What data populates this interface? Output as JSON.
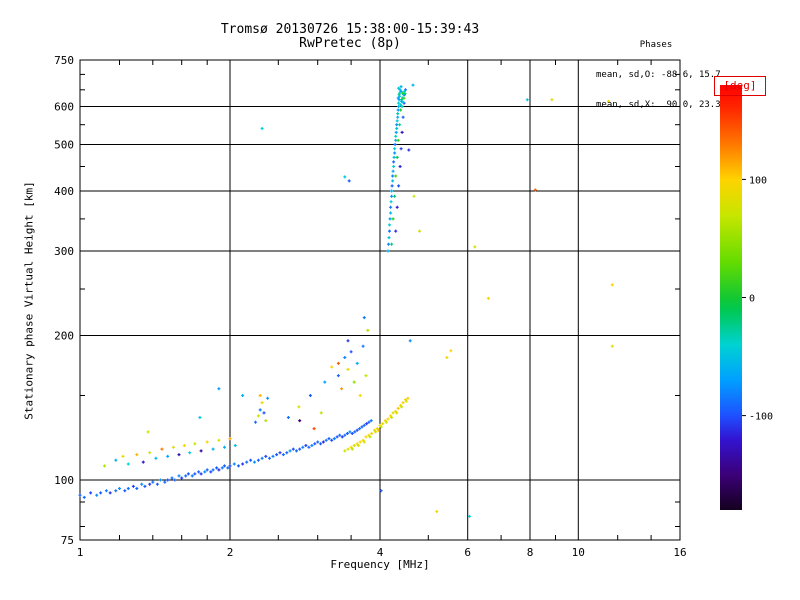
{
  "header": {
    "title": "Tromsø 20130726 15:38:00-15:39:43",
    "subtitle": "RwPretec (8p)",
    "stats": {
      "header": "Phases",
      "line_o": "mean, sd,O: -88.6, 15.7",
      "line_x": "mean, sd,X:  90.0, 23.3"
    }
  },
  "colorbar": {
    "label": "[deg]",
    "label_color": "#e00000",
    "min": -180,
    "max": 180,
    "ticks": [
      100,
      0,
      -100
    ],
    "stops": [
      [
        -180,
        "#14001e"
      ],
      [
        -150,
        "#3c0078"
      ],
      [
        -120,
        "#3214d2"
      ],
      [
        -100,
        "#1e50ff"
      ],
      [
        -70,
        "#00a0ff"
      ],
      [
        -40,
        "#00d2d2"
      ],
      [
        -10,
        "#00c850"
      ],
      [
        0,
        "#14c832"
      ],
      [
        30,
        "#64dc00"
      ],
      [
        70,
        "#c8e600"
      ],
      [
        100,
        "#ffd200"
      ],
      [
        130,
        "#ff7800"
      ],
      [
        160,
        "#ff2800"
      ],
      [
        180,
        "#ff0000"
      ]
    ]
  },
  "chart_data": {
    "type": "scatter",
    "title": "Tromsø 20130726 15:38:00-15:39:43",
    "subtitle": "RwPretec (8p)",
    "xlabel": "Frequency [MHz]",
    "ylabel": "Stationary phase Virtual Height [km]",
    "xscale": "log",
    "yscale": "log",
    "xlim": [
      1,
      16
    ],
    "ylim": [
      75,
      750
    ],
    "xticks": [
      1,
      2,
      4,
      6,
      8,
      10,
      16
    ],
    "yticks": [
      75,
      100,
      200,
      300,
      400,
      500,
      600,
      750
    ],
    "xticks_minor": [
      1.2,
      1.4,
      1.6,
      1.8,
      2.5,
      3,
      3.5,
      5,
      7,
      9,
      12,
      14
    ],
    "yticks_minor": [
      80,
      90,
      150,
      250,
      350,
      450,
      550,
      650,
      700
    ],
    "grid_x": [
      2,
      4,
      6,
      8,
      10
    ],
    "grid_y": [
      100,
      200,
      300,
      400,
      500,
      600
    ],
    "color_value": "phase_deg",
    "points": [
      [
        1.0,
        93,
        -95
      ],
      [
        1.02,
        92,
        -88
      ],
      [
        1.05,
        94,
        -102
      ],
      [
        1.08,
        93,
        -80
      ],
      [
        1.1,
        94,
        -96
      ],
      [
        1.13,
        95,
        -85
      ],
      [
        1.15,
        94,
        -108
      ],
      [
        1.18,
        95,
        -90
      ],
      [
        1.2,
        96,
        -75
      ],
      [
        1.23,
        95,
        -98
      ],
      [
        1.25,
        96,
        -86
      ],
      [
        1.28,
        97,
        -104
      ],
      [
        1.3,
        96,
        -92
      ],
      [
        1.33,
        98,
        -79
      ],
      [
        1.35,
        97,
        -95
      ],
      [
        1.38,
        98,
        -110
      ],
      [
        1.4,
        99,
        -84
      ],
      [
        1.43,
        98,
        -97
      ],
      [
        1.45,
        100,
        -72
      ],
      [
        1.48,
        99,
        -90
      ],
      [
        1.5,
        100,
        -101
      ],
      [
        1.53,
        101,
        -87
      ],
      [
        1.55,
        100,
        -94
      ],
      [
        1.58,
        102,
        -78
      ],
      [
        1.6,
        101,
        -105
      ],
      [
        1.63,
        102,
        -89
      ],
      [
        1.65,
        103,
        -96
      ],
      [
        1.68,
        102,
        -82
      ],
      [
        1.7,
        103,
        -99
      ],
      [
        1.73,
        104,
        -91
      ],
      [
        1.75,
        103,
        -107
      ],
      [
        1.78,
        104,
        -76
      ],
      [
        1.8,
        105,
        -93
      ],
      [
        1.83,
        104,
        -100
      ],
      [
        1.85,
        105,
        -86
      ],
      [
        1.88,
        106,
        -97
      ],
      [
        1.9,
        105,
        -111
      ],
      [
        1.93,
        106,
        -83
      ],
      [
        1.95,
        107,
        -95
      ],
      [
        1.98,
        106,
        -90
      ],
      [
        2.0,
        107,
        -102
      ],
      [
        2.04,
        108,
        -77
      ],
      [
        2.08,
        107,
        -94
      ],
      [
        2.12,
        108,
        -106
      ],
      [
        2.16,
        109,
        -88
      ],
      [
        2.2,
        110,
        -99
      ],
      [
        2.24,
        109,
        -73
      ],
      [
        2.28,
        110,
        -96
      ],
      [
        2.32,
        111,
        -85
      ],
      [
        2.36,
        112,
        -103
      ],
      [
        2.4,
        111,
        -92
      ],
      [
        2.44,
        112,
        -80
      ],
      [
        2.48,
        113,
        -98
      ],
      [
        2.52,
        114,
        -109
      ],
      [
        2.56,
        113,
        -87
      ],
      [
        2.6,
        114,
        -95
      ],
      [
        2.64,
        115,
        -74
      ],
      [
        2.68,
        116,
        -101
      ],
      [
        2.72,
        115,
        -90
      ],
      [
        2.76,
        116,
        -97
      ],
      [
        2.8,
        117,
        -84
      ],
      [
        2.84,
        118,
        -105
      ],
      [
        2.88,
        117,
        -93
      ],
      [
        2.92,
        118,
        -79
      ],
      [
        2.96,
        119,
        -100
      ],
      [
        3.0,
        120,
        -89
      ],
      [
        3.04,
        119,
        -96
      ],
      [
        3.08,
        120,
        -112
      ],
      [
        3.12,
        121,
        -86
      ],
      [
        3.16,
        122,
        -94
      ],
      [
        3.2,
        121,
        -103
      ],
      [
        3.24,
        122,
        -81
      ],
      [
        3.28,
        123,
        -98
      ],
      [
        3.32,
        124,
        -91
      ],
      [
        3.36,
        123,
        -107
      ],
      [
        3.4,
        124,
        -88
      ],
      [
        3.44,
        125,
        -95
      ],
      [
        3.48,
        126,
        -76
      ],
      [
        3.52,
        125,
        -100
      ],
      [
        3.56,
        126,
        -92
      ],
      [
        3.6,
        127,
        -104
      ],
      [
        3.64,
        128,
        -85
      ],
      [
        3.68,
        129,
        -97
      ],
      [
        3.72,
        130,
        -90
      ],
      [
        3.76,
        131,
        -108
      ],
      [
        3.8,
        132,
        -94
      ],
      [
        3.84,
        133,
        -82
      ],
      [
        1.12,
        107,
        60
      ],
      [
        1.18,
        110,
        -60
      ],
      [
        1.22,
        112,
        90
      ],
      [
        1.25,
        108,
        -40
      ],
      [
        1.3,
        113,
        110
      ],
      [
        1.34,
        109,
        -120
      ],
      [
        1.38,
        114,
        75
      ],
      [
        1.42,
        111,
        -55
      ],
      [
        1.46,
        116,
        130
      ],
      [
        1.5,
        112,
        -65
      ],
      [
        1.54,
        117,
        85
      ],
      [
        1.58,
        113,
        -130
      ],
      [
        1.62,
        118,
        95
      ],
      [
        1.66,
        114,
        -45
      ],
      [
        1.7,
        119,
        70
      ],
      [
        1.75,
        115,
        -140
      ],
      [
        1.8,
        120,
        100
      ],
      [
        1.85,
        116,
        -58
      ],
      [
        1.9,
        121,
        80
      ],
      [
        1.95,
        117,
        -62
      ],
      [
        2.0,
        122,
        115
      ],
      [
        2.05,
        118,
        -48
      ],
      [
        2.25,
        132,
        -90
      ],
      [
        2.28,
        136,
        70
      ],
      [
        2.3,
        140,
        -85
      ],
      [
        2.32,
        145,
        95
      ],
      [
        2.34,
        138,
        -100
      ],
      [
        2.36,
        133,
        60
      ],
      [
        2.38,
        148,
        -75
      ],
      [
        2.3,
        150,
        110
      ],
      [
        2.62,
        135,
        -88
      ],
      [
        2.75,
        142,
        80
      ],
      [
        2.9,
        150,
        -95
      ],
      [
        3.05,
        138,
        65
      ],
      [
        3.1,
        160,
        -70
      ],
      [
        3.2,
        172,
        100
      ],
      [
        3.3,
        165,
        -90
      ],
      [
        3.35,
        155,
        120
      ],
      [
        3.4,
        180,
        -80
      ],
      [
        3.45,
        170,
        85
      ],
      [
        3.5,
        185,
        -100
      ],
      [
        3.55,
        160,
        45
      ],
      [
        3.6,
        175,
        -60
      ],
      [
        3.65,
        150,
        95
      ],
      [
        3.7,
        190,
        -85
      ],
      [
        3.75,
        165,
        70
      ],
      [
        3.3,
        175,
        140
      ],
      [
        3.45,
        195,
        -110
      ],
      [
        3.4,
        115,
        75
      ],
      [
        3.45,
        116,
        85
      ],
      [
        3.5,
        117,
        95
      ],
      [
        3.55,
        118,
        80
      ],
      [
        3.6,
        119,
        90
      ],
      [
        3.65,
        120,
        100
      ],
      [
        3.7,
        121,
        85
      ],
      [
        3.75,
        123,
        95
      ],
      [
        3.8,
        124,
        88
      ],
      [
        3.85,
        125,
        98
      ],
      [
        3.9,
        127,
        82
      ],
      [
        3.95,
        128,
        92
      ],
      [
        4.0,
        130,
        102
      ],
      [
        4.05,
        131,
        86
      ],
      [
        4.1,
        133,
        96
      ],
      [
        4.15,
        134,
        90
      ],
      [
        4.2,
        136,
        100
      ],
      [
        4.25,
        138,
        84
      ],
      [
        4.3,
        139,
        94
      ],
      [
        4.35,
        141,
        104
      ],
      [
        4.4,
        143,
        88
      ],
      [
        4.45,
        145,
        98
      ],
      [
        4.5,
        147,
        92
      ],
      [
        4.55,
        148,
        102
      ],
      [
        3.62,
        118,
        70
      ],
      [
        3.72,
        120,
        78
      ],
      [
        3.82,
        123,
        68
      ],
      [
        3.92,
        126,
        76
      ],
      [
        4.02,
        129,
        66
      ],
      [
        4.12,
        132,
        74
      ],
      [
        4.22,
        135,
        72
      ],
      [
        4.32,
        138,
        80
      ],
      [
        4.42,
        142,
        70
      ],
      [
        4.52,
        146,
        78
      ],
      [
        3.52,
        116,
        64
      ],
      [
        3.97,
        127,
        108
      ],
      [
        4.15,
        300,
        -60
      ],
      [
        4.16,
        310,
        -80
      ],
      [
        4.17,
        320,
        -50
      ],
      [
        4.18,
        330,
        -90
      ],
      [
        4.18,
        340,
        -40
      ],
      [
        4.19,
        350,
        -70
      ],
      [
        4.2,
        360,
        -55
      ],
      [
        4.2,
        370,
        -85
      ],
      [
        4.21,
        380,
        -45
      ],
      [
        4.22,
        390,
        -75
      ],
      [
        4.22,
        400,
        -60
      ],
      [
        4.23,
        410,
        -95
      ],
      [
        4.24,
        420,
        -50
      ],
      [
        4.24,
        430,
        -80
      ],
      [
        4.25,
        440,
        -65
      ],
      [
        4.26,
        450,
        -40
      ],
      [
        4.26,
        460,
        -90
      ],
      [
        4.27,
        470,
        -55
      ],
      [
        4.28,
        480,
        -75
      ],
      [
        4.28,
        490,
        -45
      ],
      [
        4.29,
        500,
        -85
      ],
      [
        4.3,
        510,
        -60
      ],
      [
        4.3,
        520,
        -35
      ],
      [
        4.31,
        530,
        -70
      ],
      [
        4.32,
        540,
        -50
      ],
      [
        4.32,
        550,
        -80
      ],
      [
        4.33,
        560,
        -45
      ],
      [
        4.34,
        570,
        -65
      ],
      [
        4.34,
        580,
        -30
      ],
      [
        4.35,
        590,
        -75
      ],
      [
        4.36,
        600,
        -55
      ],
      [
        4.36,
        610,
        -40
      ],
      [
        4.37,
        620,
        -70
      ],
      [
        4.38,
        630,
        -50
      ],
      [
        4.38,
        640,
        -35
      ],
      [
        4.39,
        650,
        -60
      ],
      [
        4.22,
        310,
        -20
      ],
      [
        4.25,
        350,
        10
      ],
      [
        4.28,
        390,
        -15
      ],
      [
        4.3,
        430,
        20
      ],
      [
        4.33,
        470,
        -10
      ],
      [
        4.35,
        510,
        15
      ],
      [
        4.38,
        550,
        -25
      ],
      [
        4.4,
        590,
        5
      ],
      [
        4.42,
        620,
        -20
      ],
      [
        4.44,
        640,
        10
      ],
      [
        4.3,
        330,
        -110
      ],
      [
        4.33,
        370,
        -120
      ],
      [
        4.36,
        410,
        -100
      ],
      [
        4.39,
        450,
        -115
      ],
      [
        4.41,
        490,
        -105
      ],
      [
        4.43,
        530,
        -125
      ],
      [
        4.45,
        570,
        -95
      ],
      [
        4.47,
        610,
        -110
      ],
      [
        4.48,
        635,
        -100
      ],
      [
        4.5,
        650,
        -90
      ],
      [
        4.4,
        605,
        -45
      ],
      [
        4.42,
        615,
        -60
      ],
      [
        4.44,
        625,
        -30
      ],
      [
        4.46,
        635,
        -55
      ],
      [
        4.48,
        645,
        -40
      ],
      [
        4.35,
        625,
        -70
      ],
      [
        4.37,
        635,
        -25
      ],
      [
        4.41,
        645,
        -65
      ],
      [
        4.43,
        600,
        -35
      ],
      [
        4.45,
        612,
        -50
      ],
      [
        4.47,
        624,
        20
      ],
      [
        4.49,
        638,
        -15
      ],
      [
        4.36,
        655,
        -45
      ],
      [
        4.41,
        660,
        -55
      ],
      [
        4.66,
        665,
        -60
      ],
      [
        2.32,
        540,
        -40
      ],
      [
        3.4,
        428,
        -45
      ],
      [
        3.47,
        420,
        -95
      ],
      [
        4.57,
        487,
        -110
      ],
      [
        4.68,
        390,
        70
      ],
      [
        5.45,
        180,
        90
      ],
      [
        5.55,
        186,
        100
      ],
      [
        4.6,
        195,
        -80
      ],
      [
        6.2,
        306,
        75
      ],
      [
        6.6,
        239,
        95
      ],
      [
        8.2,
        402,
        140
      ],
      [
        7.9,
        620,
        -50
      ],
      [
        8.85,
        620,
        85
      ],
      [
        11.5,
        615,
        90
      ],
      [
        11.7,
        255,
        100
      ],
      [
        11.7,
        190,
        85
      ],
      [
        5.2,
        86,
        95
      ],
      [
        6.05,
        84,
        -40
      ],
      [
        4.02,
        95,
        -95
      ],
      [
        2.12,
        150,
        -60
      ],
      [
        1.37,
        126,
        70
      ],
      [
        1.74,
        135,
        -45
      ],
      [
        1.9,
        155,
        -75
      ],
      [
        2.76,
        133,
        -150
      ],
      [
        2.95,
        128,
        150
      ],
      [
        3.72,
        218,
        -85
      ],
      [
        3.78,
        205,
        60
      ],
      [
        4.8,
        330,
        80
      ]
    ]
  }
}
